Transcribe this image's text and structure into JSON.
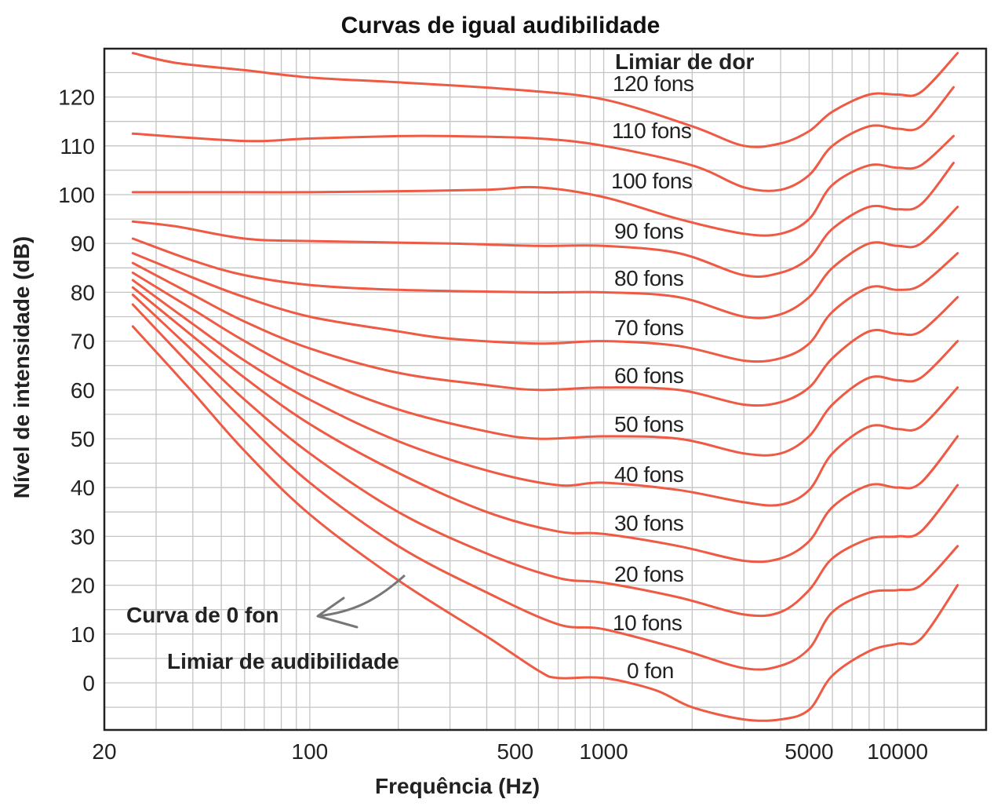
{
  "chart_data": {
    "type": "line",
    "title": "Curvas de igual audibilidade",
    "xlabel": "Frequência (Hz)",
    "ylabel": "Nível de intensidade (dB)",
    "x_scale": "log",
    "xlim": [
      20,
      20000
    ],
    "ylim": [
      -8,
      130
    ],
    "grid": true,
    "x_ticks": [
      {
        "value": 20,
        "label": "20"
      },
      {
        "value": 100,
        "label": "100"
      },
      {
        "value": 500,
        "label": "500"
      },
      {
        "value": 1000,
        "label": "1000"
      },
      {
        "value": 5000,
        "label": "5000"
      },
      {
        "value": 10000,
        "label": "10000"
      }
    ],
    "y_ticks": [
      {
        "value": 0,
        "label": "0"
      },
      {
        "value": 10,
        "label": "10"
      },
      {
        "value": 20,
        "label": "20"
      },
      {
        "value": 30,
        "label": "30"
      },
      {
        "value": 40,
        "label": "40"
      },
      {
        "value": 50,
        "label": "50"
      },
      {
        "value": 60,
        "label": "60"
      },
      {
        "value": 70,
        "label": "70"
      },
      {
        "value": 80,
        "label": "80"
      },
      {
        "value": 90,
        "label": "90"
      },
      {
        "value": 100,
        "label": "100"
      },
      {
        "value": 110,
        "label": "110"
      },
      {
        "value": 120,
        "label": "120"
      }
    ],
    "annotations": [
      {
        "text": "Limiar de dor"
      },
      {
        "text": "Curva de 0 fon"
      },
      {
        "text": "Limiar de audibilidade"
      }
    ],
    "color": "#ee5a44",
    "series": [
      {
        "name": "120 fons",
        "x": [
          25,
          35,
          60,
          100,
          200,
          500,
          1000,
          2000,
          3000,
          4000,
          5000,
          6000,
          8000,
          10000,
          12000,
          16000
        ],
        "y": [
          129,
          127,
          125.5,
          124,
          123,
          121.5,
          119.5,
          114,
          110,
          110.5,
          113,
          117,
          120.5,
          120.5,
          121,
          129
        ]
      },
      {
        "name": "110 fons",
        "x": [
          25,
          60,
          100,
          200,
          300,
          600,
          1000,
          2000,
          3000,
          4000,
          5000,
          6000,
          8000,
          10000,
          12000,
          15500
        ],
        "y": [
          112.5,
          111,
          111.5,
          112,
          112,
          111.5,
          110,
          106,
          101.5,
          101,
          104,
          110,
          114,
          113.5,
          114,
          122
        ]
      },
      {
        "name": "100 fons",
        "x": [
          25,
          60,
          100,
          200,
          400,
          600,
          1000,
          1800,
          3000,
          4000,
          5000,
          6000,
          8000,
          10000,
          12000,
          15500
        ],
        "y": [
          100.5,
          100.5,
          100.5,
          100.7,
          101,
          101.5,
          99.5,
          95,
          92,
          92,
          95,
          102,
          106,
          105.5,
          106,
          112
        ]
      },
      {
        "name": "90 fons",
        "x": [
          25,
          35,
          60,
          100,
          300,
          600,
          1000,
          1800,
          3000,
          4000,
          5000,
          6000,
          8000,
          10000,
          12000,
          15500
        ],
        "y": [
          94.5,
          93.5,
          91,
          90.5,
          90,
          89.5,
          89.5,
          88,
          83.5,
          84,
          87,
          93,
          97.5,
          97,
          98,
          106.5
        ]
      },
      {
        "name": "80 fons",
        "x": [
          25,
          40,
          60,
          100,
          200,
          600,
          1000,
          1800,
          3000,
          4000,
          5000,
          6000,
          8000,
          10000,
          12000,
          16000
        ],
        "y": [
          91,
          86.5,
          83.5,
          81.5,
          80.5,
          80,
          80,
          79,
          75,
          75.5,
          79,
          85,
          90,
          89.5,
          90,
          97.5
        ]
      },
      {
        "name": "70 fons",
        "x": [
          25,
          40,
          60,
          100,
          200,
          300,
          600,
          1000,
          1800,
          3000,
          4000,
          5000,
          6000,
          8000,
          10000,
          12000,
          16000
        ],
        "y": [
          88,
          83,
          79,
          75,
          72,
          70.5,
          69.5,
          70,
          69,
          66,
          66.5,
          69.5,
          76,
          81,
          80.5,
          81.5,
          88
        ]
      },
      {
        "name": "60 fons",
        "x": [
          25,
          40,
          60,
          100,
          200,
          400,
          600,
          1000,
          1800,
          3000,
          4000,
          5000,
          6000,
          8000,
          10000,
          12000,
          16000
        ],
        "y": [
          86,
          79.5,
          74,
          68.5,
          63.5,
          61,
          60,
          60.5,
          60,
          57,
          57.5,
          60.5,
          66.5,
          72,
          71.5,
          72,
          79
        ]
      },
      {
        "name": "50 fons",
        "x": [
          25,
          40,
          60,
          100,
          200,
          400,
          600,
          1000,
          1800,
          3000,
          4000,
          5000,
          6000,
          8000,
          10000,
          12000,
          16000
        ],
        "y": [
          84,
          76.5,
          70,
          63,
          56,
          51.5,
          50,
          50.5,
          50,
          47,
          47,
          50.5,
          57,
          62.5,
          62,
          62.5,
          70
        ]
      },
      {
        "name": "40 fons",
        "x": [
          25,
          40,
          60,
          100,
          200,
          400,
          700,
          1000,
          1800,
          3000,
          4000,
          5000,
          6000,
          8000,
          10000,
          12000,
          16000
        ],
        "y": [
          82.5,
          73.5,
          66,
          58,
          49.5,
          43.5,
          40.5,
          41,
          39.5,
          37,
          36.5,
          39.5,
          47,
          52.5,
          52,
          52.5,
          60.5
        ]
      },
      {
        "name": "30 fons",
        "x": [
          25,
          40,
          60,
          100,
          200,
          400,
          700,
          1000,
          1800,
          3000,
          4000,
          5000,
          6000,
          8000,
          10000,
          12000,
          16000
        ],
        "y": [
          81,
          71,
          62.5,
          53,
          43,
          35,
          31,
          30.5,
          28,
          25,
          25.5,
          29,
          36,
          40.5,
          40,
          41,
          50.5
        ]
      },
      {
        "name": "20 fons",
        "x": [
          25,
          40,
          60,
          100,
          200,
          400,
          700,
          1000,
          1800,
          3000,
          4000,
          5000,
          6000,
          8000,
          10000,
          12000,
          16000
        ],
        "y": [
          79.5,
          68,
          58,
          47,
          35,
          26.5,
          21.5,
          20.5,
          17.5,
          14,
          14.5,
          19,
          25.5,
          29.5,
          30,
          31,
          40.5
        ]
      },
      {
        "name": "10 fons",
        "x": [
          25,
          40,
          60,
          100,
          200,
          400,
          700,
          1000,
          1800,
          3000,
          4000,
          5000,
          6000,
          8000,
          10000,
          12000,
          16000
        ],
        "y": [
          77.5,
          64.5,
          53.5,
          41,
          28,
          18.5,
          12,
          11,
          7,
          3,
          3.5,
          7,
          14.5,
          18.5,
          19,
          20,
          28
        ]
      },
      {
        "name": "0 fon",
        "x": [
          25,
          40,
          60,
          100,
          200,
          400,
          600,
          700,
          1000,
          1500,
          2000,
          3000,
          4000,
          5000,
          6000,
          8000,
          10000,
          12000,
          16000
        ],
        "y": [
          73,
          59.5,
          47.5,
          34.5,
          21,
          9.5,
          2.5,
          1,
          1,
          -1.5,
          -5,
          -7.5,
          -7.5,
          -5.5,
          1.5,
          6.5,
          8,
          9,
          20
        ]
      }
    ],
    "curve_labels": [
      "120 fons",
      "110 fons",
      "100 fons",
      "90 fons",
      "80 fons",
      "70 fons",
      "60 fons",
      "50 fons",
      "40 fons",
      "30 fons",
      "20 fons",
      "10 fons",
      "0 fon"
    ]
  }
}
